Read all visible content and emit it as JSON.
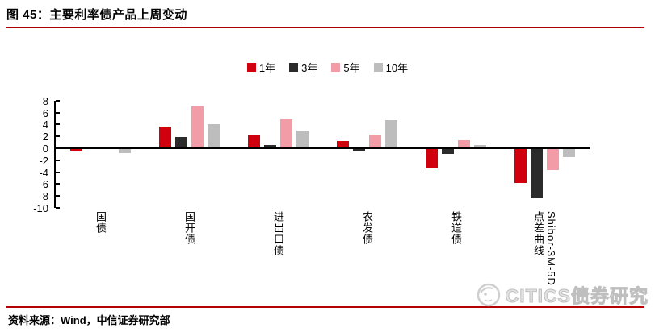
{
  "header": {
    "title": "图 45：主要利率债产品上周变动"
  },
  "footer": {
    "source": "资料来源：Wind，中信证券研究部"
  },
  "watermark": {
    "brand": "CITICS债券研究"
  },
  "chart_data": {
    "type": "bar",
    "title": "主要利率债产品上周变动",
    "categories": [
      "国债",
      "国开债",
      "进出口债",
      "农发债",
      "铁道债",
      "Shibor-3M-5D\n点差曲线"
    ],
    "series": [
      {
        "name": "1年",
        "color": "#D0000F",
        "values": [
          -0.2,
          3.6,
          2.1,
          1.2,
          -3.2,
          -5.7
        ]
      },
      {
        "name": "3年",
        "color": "#2B2B2B",
        "values": [
          0,
          1.9,
          0.5,
          -0.4,
          -0.8,
          -8.2
        ]
      },
      {
        "name": "5年",
        "color": "#F19CA7",
        "values": [
          0,
          7.0,
          4.8,
          2.3,
          1.4,
          -3.5
        ]
      },
      {
        "name": "10年",
        "color": "#BDBDBD",
        "values": [
          -0.7,
          4.0,
          3.0,
          4.7,
          0.6,
          -1.4
        ]
      }
    ],
    "ylim": [
      -10,
      8
    ],
    "ytick_step": 2,
    "yticks": [
      8,
      6,
      4,
      2,
      0,
      -2,
      -4,
      -6,
      -8,
      -10
    ],
    "xlabel": "",
    "ylabel": "",
    "legend_position": "top",
    "grid": false
  },
  "colors": {
    "title_rule_red": "#AA0000",
    "source_rule_red": "#B40000",
    "axis_black": "#000000"
  }
}
